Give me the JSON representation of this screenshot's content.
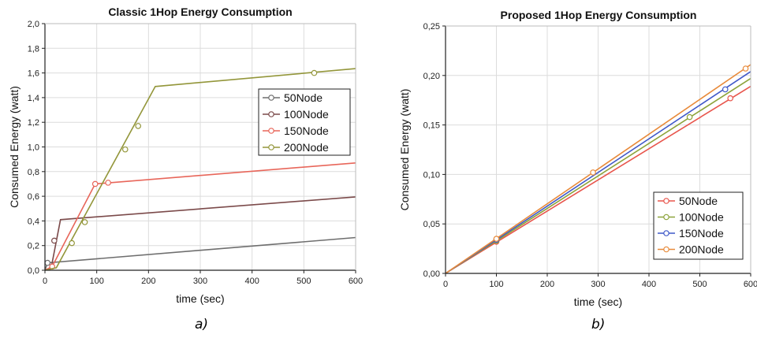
{
  "captions": {
    "a": "a)",
    "b": "b)"
  },
  "chart_data": [
    {
      "type": "line",
      "title": "Classic 1Hop Energy Consumption",
      "xlabel": "time (sec)",
      "ylabel": "Consumed Energy (watt)",
      "xlim": [
        0,
        600
      ],
      "ylim": [
        0,
        2.0
      ],
      "x_ticks": [
        0,
        100,
        200,
        300,
        400,
        500,
        600
      ],
      "x_tick_labels": [
        "0",
        "100",
        "200",
        "300",
        "400",
        "500",
        "600"
      ],
      "y_ticks": [
        0,
        0.2,
        0.4,
        0.6,
        0.8,
        1.0,
        1.2,
        1.4,
        1.6,
        1.8,
        2.0
      ],
      "y_tick_labels": [
        "0,0",
        "0,2",
        "0,4",
        "0,6",
        "0,8",
        "1,0",
        "1,2",
        "1,4",
        "1,6",
        "1,8",
        "2,0"
      ],
      "grid": true,
      "legend_position": "right-middle",
      "series": [
        {
          "name": "50Node",
          "color": "#6e6e6e",
          "points": [
            [
              0,
              0.0
            ],
            [
              5,
              0.06
            ],
            [
              600,
              0.265
            ]
          ],
          "markers": [
            [
              5,
              0.06
            ]
          ]
        },
        {
          "name": "100Node",
          "color": "#7b4a4a",
          "points": [
            [
              0,
              0.0
            ],
            [
              12,
              0.02
            ],
            [
              30,
              0.41
            ],
            [
              600,
              0.595
            ]
          ],
          "markers": [
            [
              18,
              0.24
            ]
          ]
        },
        {
          "name": "150Node",
          "color": "#e8665a",
          "points": [
            [
              0,
              0.0
            ],
            [
              14,
              0.03
            ],
            [
              97,
              0.7
            ],
            [
              600,
              0.87
            ]
          ],
          "markers": [
            [
              14,
              0.03
            ],
            [
              97,
              0.7
            ],
            [
              122,
              0.71
            ]
          ]
        },
        {
          "name": "200Node",
          "color": "#93963a",
          "points": [
            [
              0,
              0.0
            ],
            [
              22,
              0.02
            ],
            [
              213,
              1.49
            ],
            [
              600,
              1.635
            ]
          ],
          "markers": [
            [
              52,
              0.22
            ],
            [
              77,
              0.39
            ],
            [
              155,
              0.98
            ],
            [
              180,
              1.17
            ],
            [
              520,
              1.6
            ]
          ]
        }
      ]
    },
    {
      "type": "line",
      "title": "Proposed 1Hop Energy Consumption",
      "xlabel": "time (sec)",
      "ylabel": "Consumed Energy (watt)",
      "xlim": [
        0,
        600
      ],
      "ylim": [
        0,
        0.25
      ],
      "x_ticks": [
        0,
        100,
        200,
        300,
        400,
        500,
        600
      ],
      "x_tick_labels": [
        "0",
        "100",
        "200",
        "300",
        "400",
        "500",
        "600"
      ],
      "y_ticks": [
        0,
        0.05,
        0.1,
        0.15,
        0.2,
        0.25
      ],
      "y_tick_labels": [
        "0,00",
        "0,05",
        "0,10",
        "0,15",
        "0,20",
        "0,25"
      ],
      "grid": true,
      "legend_position": "bottom-right",
      "series": [
        {
          "name": "50Node",
          "color": "#e8554c",
          "points": [
            [
              0,
              0.0
            ],
            [
              600,
              0.189
            ]
          ],
          "markers": [
            [
              100,
              0.032
            ],
            [
              560,
              0.177
            ]
          ]
        },
        {
          "name": "100Node",
          "color": "#8ca33a",
          "points": [
            [
              0,
              0.0
            ],
            [
              600,
              0.197
            ]
          ],
          "markers": [
            [
              100,
              0.033
            ],
            [
              480,
              0.158
            ]
          ]
        },
        {
          "name": "150Node",
          "color": "#3f58c8",
          "points": [
            [
              0,
              0.0
            ],
            [
              600,
              0.204
            ]
          ],
          "markers": [
            [
              100,
              0.034
            ],
            [
              550,
              0.186
            ]
          ]
        },
        {
          "name": "200Node",
          "color": "#e88a3a",
          "points": [
            [
              0,
              0.0
            ],
            [
              600,
              0.211
            ]
          ],
          "markers": [
            [
              100,
              0.035
            ],
            [
              290,
              0.102
            ],
            [
              590,
              0.207
            ]
          ]
        }
      ]
    }
  ]
}
